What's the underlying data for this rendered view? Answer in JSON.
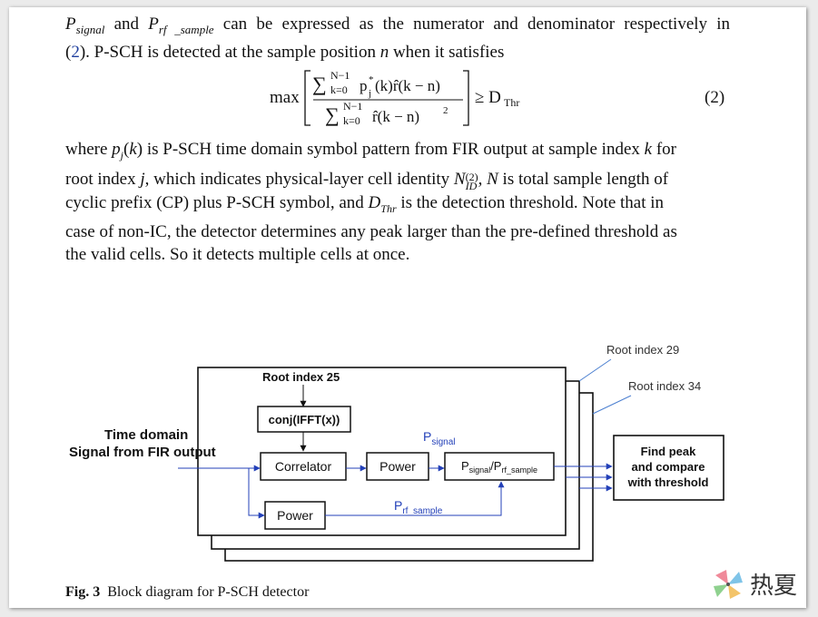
{
  "paragraph1": {
    "line1_symbol_a": "P",
    "line1_sub_a": "signal",
    "line1_and": " and ",
    "line1_symbol_b": "P",
    "line1_sub_b": "rf _sample",
    "line1_rest": " can be expressed as the numerator and denominator respectively in",
    "line2_open": "(",
    "line2_ref": "2",
    "line2_rest": "). P-SCH is detected at the sample position ",
    "line2_n": "n",
    "line2_end": " when it satisfies"
  },
  "equation": {
    "max": "max",
    "sum_upper": "N−1",
    "sum_lower": "k=0",
    "numerator_term": "p",
    "numerator_sup": "*",
    "numerator_sub": "j",
    "numerator_rest": "(k)r̂(k − n)",
    "denominator_term": "r̂(k − n)",
    "denominator_sup": "2",
    "geq": "≥ D",
    "threshold_sub": "Thr",
    "number": "(2)"
  },
  "paragraph2": {
    "lines": [
      "where p_j(k) is P-SCH time domain symbol pattern from FIR output at sample index k for",
      "root index j, which indicates physical-layer cell identity N_ID^(2), N is total sample length of",
      "cyclic prefix (CP) plus P-SCH symbol, and D_Thr is the detection threshold. Note that in",
      "case of non-IC, the detector determines any peak larger than the pre-defined threshold as",
      "the valid cells. So it detects multiple cells at once."
    ]
  },
  "diagram": {
    "root_index_29": "Root index 29",
    "root_index_34": "Root index 34",
    "root_index_25": "Root index 25",
    "conj_label": "conj(IFFT(x))",
    "input_line1": "Time domain",
    "input_line2": "Signal from FIR output",
    "correlator_label": "Correlator",
    "power_top_label": "Power",
    "power_bottom_label": "Power",
    "p_signal_label": "P",
    "p_signal_sub": "signal",
    "ratio_p1": "P",
    "ratio_sub1": "signal",
    "ratio_p2": "/P",
    "ratio_sub2": "rf_sample",
    "p_rf_label": "P",
    "p_rf_sub": "rf_sample",
    "find_peak_line1": "Find peak",
    "find_peak_line2": "and compare",
    "find_peak_line3": "with threshold",
    "blue": "#2340b8"
  },
  "caption": {
    "label": "Fig. 3",
    "text": "Block diagram for P-SCH detector"
  },
  "watermark": {
    "text": "热夏",
    "icon": "pinwheel-icon"
  }
}
